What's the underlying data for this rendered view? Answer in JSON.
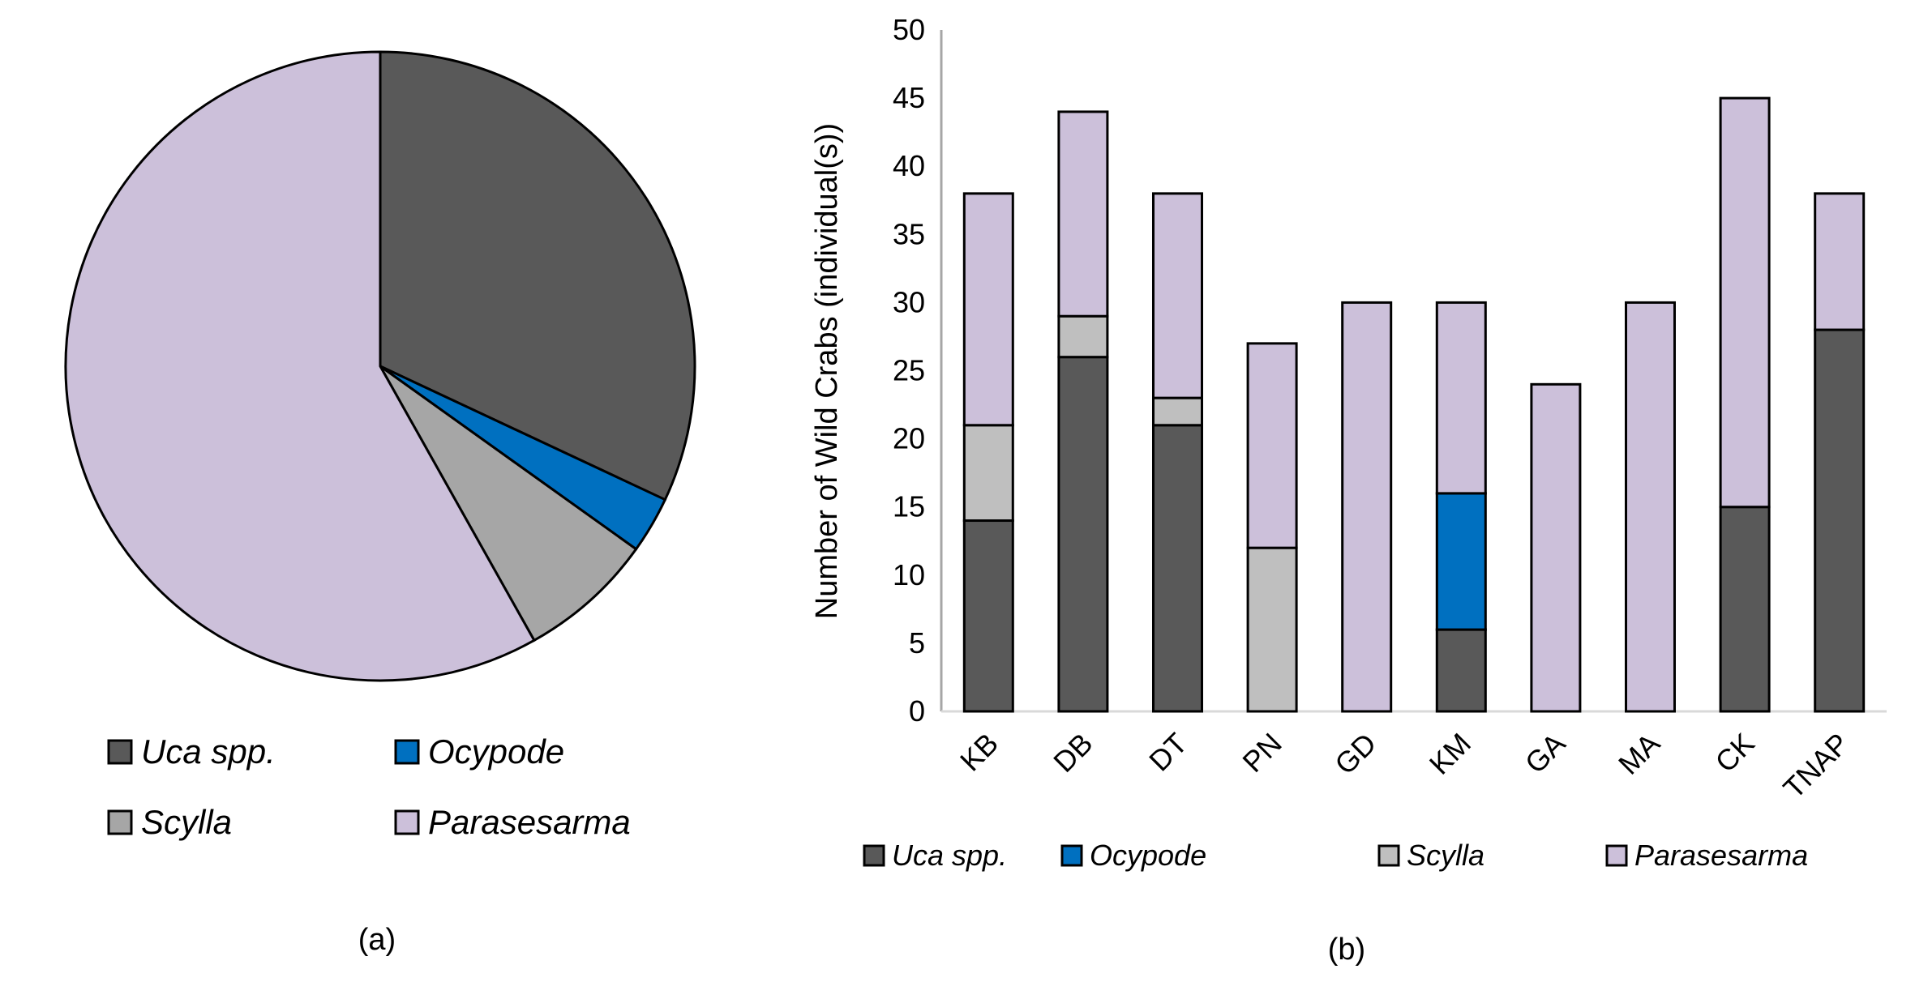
{
  "colors": {
    "Uca spp.": "#595959",
    "Ocypode": "#0070C0",
    "Scylla_pie": "#A6A6A6",
    "Scylla_bar": "#BFBFBF",
    "Parasesarma": "#CCC0DA"
  },
  "chart_data": [
    {
      "type": "pie",
      "panel_label": "(a)",
      "legend": [
        "Uca spp.",
        "Ocypode",
        "Scylla",
        "Parasesarma"
      ],
      "legend_placement": "bottom",
      "slices": [
        {
          "name": "Uca spp.",
          "value": 110
        },
        {
          "name": "Ocypode",
          "value": 10
        },
        {
          "name": "Scylla",
          "value": 24
        },
        {
          "name": "Parasesarma",
          "value": 200
        }
      ]
    },
    {
      "type": "bar",
      "stacked": true,
      "panel_label": "(b)",
      "ylabel": "Number of Wild Crabs (individual(s))",
      "xlabel": "",
      "ylim": [
        0,
        50
      ],
      "yticks": [
        0,
        5,
        10,
        15,
        20,
        25,
        30,
        35,
        40,
        45,
        50
      ],
      "grid": false,
      "legend_placement": "bottom",
      "categories": [
        "KB",
        "DB",
        "DT",
        "PN",
        "GD",
        "KM",
        "GA",
        "MA",
        "CK",
        "TNAP"
      ],
      "series": [
        {
          "name": "Uca spp.",
          "values": [
            14,
            26,
            21,
            0,
            0,
            6,
            0,
            0,
            15,
            28
          ]
        },
        {
          "name": "Ocypode",
          "values": [
            0,
            0,
            0,
            0,
            0,
            10,
            0,
            0,
            0,
            0
          ]
        },
        {
          "name": "Scylla",
          "values": [
            7,
            3,
            2,
            12,
            0,
            0,
            0,
            0,
            0,
            0
          ]
        },
        {
          "name": "Parasesarma",
          "values": [
            17,
            15,
            15,
            15,
            30,
            14,
            24,
            30,
            30,
            10
          ]
        }
      ]
    }
  ]
}
